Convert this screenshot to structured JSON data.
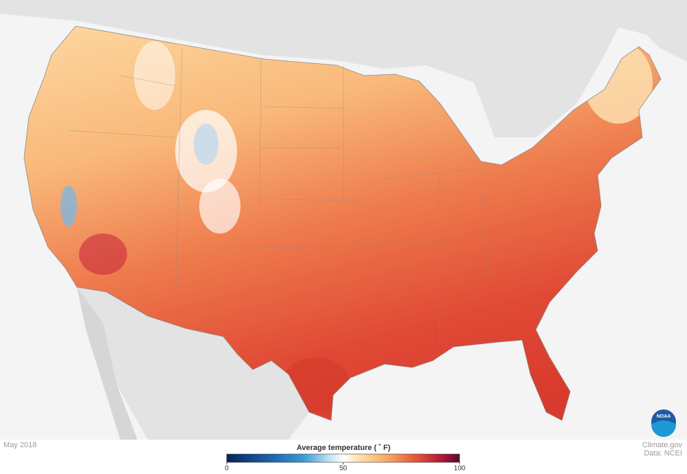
{
  "date": "May 2018",
  "legend": {
    "title": "Average temperature ( ˚ F)",
    "range": [
      0,
      100
    ],
    "ticks": [
      0,
      50,
      100
    ]
  },
  "credit": {
    "site": "Climate.gov",
    "source": "Data: NCEI"
  },
  "logo": "NOAA"
}
